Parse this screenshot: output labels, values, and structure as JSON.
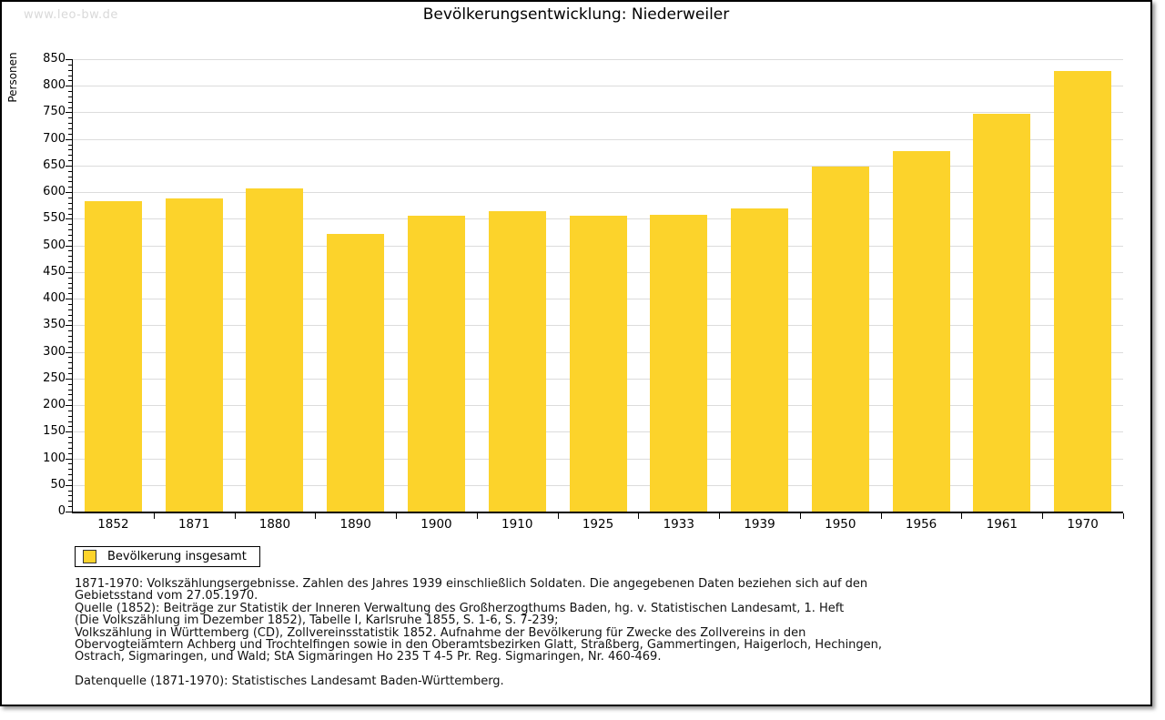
{
  "watermark": "www.leo-bw.de",
  "title": "Bevölkerungsentwicklung: Niederweiler",
  "colors": {
    "bar": "#fcd32b",
    "grid": "#dcdcdc",
    "axis": "#000000",
    "watermark": "#d9d9d9"
  },
  "chart_data": {
    "type": "bar",
    "title": "Bevölkerungsentwicklung: Niederweiler",
    "xlabel": "",
    "ylabel": "Personen",
    "categories": [
      "1852",
      "1871",
      "1880",
      "1890",
      "1900",
      "1910",
      "1925",
      "1933",
      "1939",
      "1950",
      "1956",
      "1961",
      "1970"
    ],
    "series": [
      {
        "name": "Bevölkerung insgesamt",
        "values": [
          583,
          588,
          607,
          521,
          555,
          565,
          556,
          558,
          570,
          649,
          678,
          747,
          828
        ]
      }
    ],
    "ylim": [
      0,
      850
    ],
    "ytick_major": 50,
    "ytick_minor": 10,
    "grid": true,
    "bar_color": "#fcd32b",
    "legend_position": "bottom-left"
  },
  "legend": {
    "label": "Bevölkerung insgesamt"
  },
  "footnotes": {
    "block1": [
      "1871-1970: Volkszählungsergebnisse. Zahlen des Jahres 1939 einschließlich Soldaten. Die angegebenen Daten beziehen sich auf den",
      "Gebietsstand vom 27.05.1970.",
      "Quelle (1852): Beiträge zur Statistik der Inneren Verwaltung des Großherzogthums Baden, hg. v. Statistischen Landesamt, 1. Heft",
      "(Die Volkszählung im Dezember 1852), Tabelle I, Karlsruhe 1855, S. 1-6, S. 7-239;",
      "Volkszählung in Württemberg (CD), Zollvereinsstatistik 1852. Aufnahme der Bevölkerung für Zwecke des Zollvereins in den",
      "Obervogteiämtern Achberg und Trochtelfingen sowie in den Oberamtsbezirken Glatt, Straßberg, Gammertingen, Haigerloch, Hechingen,",
      "Ostrach, Sigmaringen, und Wald; StA Sigmaringen Ho 235 T 4-5 Pr. Reg. Sigmaringen, Nr. 460-469."
    ],
    "block2": [
      "Datenquelle (1871-1970): Statistisches Landesamt Baden-Württemberg."
    ]
  }
}
